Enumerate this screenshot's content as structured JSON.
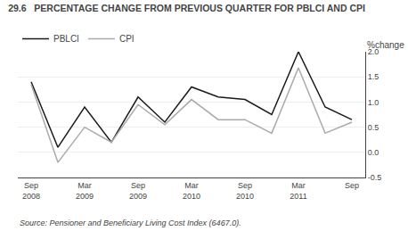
{
  "chart_data": {
    "type": "line",
    "title": "29.6   PERCENTAGE CHANGE FROM PREVIOUS QUARTER FOR PBLCI AND CPI",
    "ylabel": "%change",
    "annotations": [
      "Source: Pensioner and Beneficiary Living Cost Index (6467.0)."
    ],
    "categories": [
      "Sep\n2008",
      null,
      "Mar\n2009",
      null,
      "Sep\n2009",
      null,
      "Mar\n2010",
      null,
      "Sep\n2010",
      null,
      "Mar\n2011",
      null,
      "Sep"
    ],
    "series": [
      {
        "name": "PBLCI",
        "color": "#1a1a1a",
        "values": [
          1.4,
          0.1,
          0.9,
          0.2,
          1.1,
          0.6,
          1.3,
          1.1,
          1.05,
          0.75,
          2.0,
          0.9,
          0.65
        ]
      },
      {
        "name": "CPI",
        "color": "#aaaaaa",
        "values": [
          1.35,
          -0.2,
          0.5,
          0.2,
          0.95,
          0.55,
          1.05,
          0.65,
          0.65,
          0.38,
          1.68,
          0.38,
          0.6
        ]
      }
    ],
    "ylim": [
      -0.5,
      2.0
    ],
    "yticks": [
      -0.5,
      {
        "value": 0,
        "label": "0.0"
      },
      0.5,
      {
        "value": 1,
        "label": "1.0"
      },
      1.5,
      {
        "value": 2,
        "label": "2.0"
      }
    ],
    "grid": true,
    "legend": "upper left"
  }
}
